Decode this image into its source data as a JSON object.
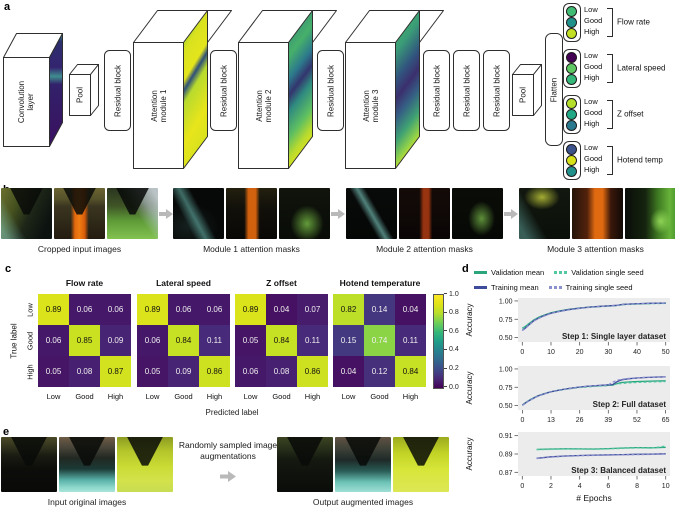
{
  "panel_a": {
    "label": "a",
    "conv_label": "Convolution layer",
    "pool_label": "Pool",
    "residual_label": "Residual block",
    "attention_labels": [
      "Attention module 1",
      "Attention module 2",
      "Attention module 3"
    ],
    "flatten_label": "Flatten",
    "outputs": [
      {
        "name": "Flow rate",
        "classes": [
          {
            "label": "Low",
            "color": "#41bc74"
          },
          {
            "label": "Good",
            "color": "#21918c"
          },
          {
            "label": "High",
            "color": "#c2df23"
          }
        ]
      },
      {
        "name": "Lateral speed",
        "classes": [
          {
            "label": "Low",
            "color": "#440154"
          },
          {
            "label": "Good",
            "color": "#5ec962"
          },
          {
            "label": "High",
            "color": "#35b779"
          }
        ]
      },
      {
        "name": "Z offset",
        "classes": [
          {
            "label": "Low",
            "color": "#b5de2b"
          },
          {
            "label": "Good",
            "color": "#22a884"
          },
          {
            "label": "High",
            "color": "#2a788e"
          }
        ]
      },
      {
        "name": "Hotend temp",
        "classes": [
          {
            "label": "Low",
            "color": "#3b528b"
          },
          {
            "label": "Good",
            "color": "#d8e219"
          },
          {
            "label": "High",
            "color": "#21918c"
          }
        ]
      }
    ]
  },
  "panel_b": {
    "label": "b",
    "groups": [
      {
        "caption": "Cropped input images"
      },
      {
        "caption": "Module 1 attention masks"
      },
      {
        "caption": "Module 2 attention masks"
      },
      {
        "caption": "Module 3 attention masks"
      }
    ]
  },
  "panel_c": {
    "label": "c",
    "ylabel": "True label",
    "xlabel": "Predicted label",
    "colorbar_ticks": [
      "1.0",
      "0.8",
      "0.6",
      "0.4",
      "0.2",
      "0.0"
    ]
  },
  "panel_d": {
    "label": "d",
    "legend": [
      {
        "label": "Validation mean",
        "color": "#2aa57c",
        "dash": false
      },
      {
        "label": "Validation single seed",
        "color": "#53c6a2",
        "dash": true
      },
      {
        "label": "Training mean",
        "color": "#3e4c9b",
        "dash": false
      },
      {
        "label": "Training single seed",
        "color": "#8b90ce",
        "dash": true
      }
    ]
  },
  "panel_e": {
    "label": "e",
    "input_caption": "Input original images",
    "arrow_text": "Randomly sampled image augmentations",
    "output_caption": "Output augmented images"
  },
  "chart_data": [
    {
      "type": "heatmap",
      "title": "Flow rate",
      "x_labels": [
        "Low",
        "Good",
        "High"
      ],
      "y_labels": [
        "Low",
        "Good",
        "High"
      ],
      "values": [
        [
          0.89,
          0.06,
          0.06
        ],
        [
          0.06,
          0.85,
          0.09
        ],
        [
          0.05,
          0.08,
          0.87
        ]
      ],
      "colormap": "viridis",
      "vmin": 0,
      "vmax": 1
    },
    {
      "type": "heatmap",
      "title": "Lateral speed",
      "x_labels": [
        "Low",
        "Good",
        "High"
      ],
      "y_labels": [
        "Low",
        "Good",
        "High"
      ],
      "values": [
        [
          0.89,
          0.06,
          0.06
        ],
        [
          0.06,
          0.84,
          0.11
        ],
        [
          0.05,
          0.09,
          0.86
        ]
      ],
      "colormap": "viridis",
      "vmin": 0,
      "vmax": 1
    },
    {
      "type": "heatmap",
      "title": "Z offset",
      "x_labels": [
        "Low",
        "Good",
        "High"
      ],
      "y_labels": [
        "Low",
        "Good",
        "High"
      ],
      "values": [
        [
          0.89,
          0.04,
          0.07
        ],
        [
          0.05,
          0.84,
          0.11
        ],
        [
          0.06,
          0.08,
          0.86
        ]
      ],
      "colormap": "viridis",
      "vmin": 0,
      "vmax": 1
    },
    {
      "type": "heatmap",
      "title": "Hotend temperature",
      "x_labels": [
        "Low",
        "Good",
        "High"
      ],
      "y_labels": [
        "Low",
        "Good",
        "High"
      ],
      "values": [
        [
          0.82,
          0.14,
          0.04
        ],
        [
          0.15,
          0.74,
          0.11
        ],
        [
          0.04,
          0.12,
          0.84
        ]
      ],
      "colormap": "viridis",
      "vmin": 0,
      "vmax": 1
    },
    {
      "type": "line",
      "annotation": "Step 1: Single layer dataset",
      "ylabel": "Accuracy",
      "xlabel": "",
      "xlim": [
        -1.5,
        51.5
      ],
      "ylim": [
        0.44,
        1.04
      ],
      "xticks": [
        0,
        10,
        20,
        30,
        40,
        50
      ],
      "yticks": [
        1.0,
        0.75,
        0.5
      ],
      "x": [
        0,
        1,
        2,
        3,
        4,
        6,
        8,
        10,
        13,
        16,
        20,
        24,
        28,
        31,
        33,
        35,
        38,
        42,
        46,
        50
      ],
      "series": [
        {
          "name": "Validation mean",
          "color": "#2aa57c",
          "dash": false,
          "y": [
            0.63,
            0.65,
            0.683,
            0.712,
            0.742,
            0.782,
            0.812,
            0.838,
            0.864,
            0.884,
            0.903,
            0.918,
            0.927,
            0.933,
            0.938,
            0.951,
            0.957,
            0.962,
            0.966,
            0.968
          ]
        },
        {
          "name": "Validation single seed",
          "color": "#53c6a2",
          "dash": true,
          "y": [
            0.625,
            0.643,
            0.676,
            0.705,
            0.737,
            0.776,
            0.806,
            0.833,
            0.86,
            0.879,
            0.899,
            0.914,
            0.924,
            0.93,
            0.936,
            0.948,
            0.954,
            0.96,
            0.964,
            0.966
          ]
        },
        {
          "name": "Training mean",
          "color": "#3e4c9b",
          "dash": false,
          "y": [
            0.6,
            0.628,
            0.664,
            0.697,
            0.73,
            0.772,
            0.805,
            0.832,
            0.86,
            0.881,
            0.902,
            0.917,
            0.928,
            0.935,
            0.941,
            0.953,
            0.959,
            0.965,
            0.969,
            0.972
          ]
        },
        {
          "name": "Training single seed",
          "color": "#8b90ce",
          "dash": true,
          "y": [
            0.595,
            0.622,
            0.658,
            0.691,
            0.725,
            0.767,
            0.8,
            0.828,
            0.856,
            0.877,
            0.898,
            0.914,
            0.925,
            0.932,
            0.939,
            0.95,
            0.957,
            0.963,
            0.968,
            0.971
          ]
        }
      ]
    },
    {
      "type": "line",
      "annotation": "Step 2: Full dataset",
      "ylabel": "Accuracy",
      "xlabel": "",
      "xlim": [
        -2,
        67
      ],
      "ylim": [
        0.44,
        1.04
      ],
      "xticks": [
        0,
        13,
        26,
        39,
        52,
        65
      ],
      "yticks": [
        1.0,
        0.75,
        0.5
      ],
      "x": [
        0,
        2,
        4,
        7,
        10,
        13,
        17,
        21,
        26,
        30,
        35,
        39,
        41,
        43,
        45,
        48,
        52,
        56,
        60,
        65
      ],
      "series": [
        {
          "name": "Validation mean",
          "color": "#2aa57c",
          "dash": false,
          "y": [
            0.51,
            0.552,
            0.588,
            0.633,
            0.664,
            0.69,
            0.714,
            0.733,
            0.752,
            0.762,
            0.771,
            0.777,
            0.779,
            0.8,
            0.815,
            0.822,
            0.828,
            0.832,
            0.835,
            0.838
          ]
        },
        {
          "name": "Validation single seed",
          "color": "#53c6a2",
          "dash": true,
          "y": [
            0.505,
            0.547,
            0.583,
            0.628,
            0.659,
            0.685,
            0.709,
            0.728,
            0.747,
            0.757,
            0.766,
            0.772,
            0.79,
            0.796,
            0.802,
            0.81,
            0.816,
            0.82,
            0.824,
            0.827
          ]
        },
        {
          "name": "Training mean",
          "color": "#3e4c9b",
          "dash": false,
          "y": [
            0.505,
            0.549,
            0.585,
            0.631,
            0.662,
            0.688,
            0.713,
            0.733,
            0.754,
            0.766,
            0.776,
            0.783,
            0.786,
            0.826,
            0.851,
            0.866,
            0.876,
            0.883,
            0.888,
            0.892
          ]
        },
        {
          "name": "Training single seed",
          "color": "#8b90ce",
          "dash": true,
          "y": [
            0.502,
            0.546,
            0.582,
            0.628,
            0.66,
            0.686,
            0.711,
            0.731,
            0.752,
            0.764,
            0.774,
            0.781,
            0.82,
            0.845,
            0.858,
            0.869,
            0.879,
            0.886,
            0.891,
            0.896
          ]
        }
      ]
    },
    {
      "type": "line",
      "annotation": "Step 3: Balanced dataset",
      "ylabel": "Accuracy",
      "xlabel": "# Epochs",
      "xlim": [
        -0.3,
        10.3
      ],
      "ylim": [
        0.866,
        0.914
      ],
      "xticks": [
        0,
        2,
        4,
        6,
        8,
        10
      ],
      "yticks": [
        0.91,
        0.89,
        0.87
      ],
      "x": [
        1,
        2,
        3,
        4,
        5,
        6,
        7,
        8,
        9,
        10
      ],
      "series": [
        {
          "name": "Validation mean",
          "color": "#2aa57c",
          "dash": false,
          "y": [
            0.895,
            0.8955,
            0.8957,
            0.8956,
            0.8955,
            0.8959,
            0.8966,
            0.897,
            0.8968,
            0.8972
          ]
        },
        {
          "name": "Validation single seed",
          "color": "#53c6a2",
          "dash": true,
          "y": [
            0.8947,
            0.8951,
            0.8955,
            0.8953,
            0.8951,
            0.8956,
            0.8962,
            0.8967,
            0.8964,
            0.8986
          ]
        },
        {
          "name": "Training mean",
          "color": "#3e4c9b",
          "dash": false,
          "y": [
            0.8853,
            0.8869,
            0.8878,
            0.8884,
            0.8888,
            0.889,
            0.8894,
            0.8897,
            0.8899,
            0.8902
          ]
        },
        {
          "name": "Training single seed",
          "color": "#8b90ce",
          "dash": true,
          "y": [
            0.885,
            0.8866,
            0.8875,
            0.8881,
            0.8885,
            0.8887,
            0.8891,
            0.8894,
            0.8896,
            0.8899
          ]
        }
      ]
    }
  ]
}
